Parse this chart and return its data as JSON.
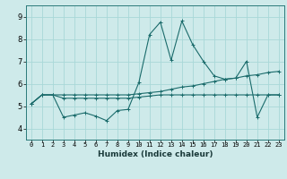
{
  "xlabel": "Humidex (Indice chaleur)",
  "background_color": "#ceeaea",
  "line_color": "#1a6b6b",
  "grid_color": "#a8d8d8",
  "x_labels": [
    "0",
    "1",
    "2",
    "3",
    "4",
    "5",
    "6",
    "7",
    "8",
    "9",
    "10",
    "11",
    "12",
    "13",
    "14",
    "15",
    "16",
    "17",
    "18",
    "19",
    "20",
    "21",
    "22",
    "23"
  ],
  "ylim": [
    3.5,
    9.5
  ],
  "yticks": [
    4,
    5,
    6,
    7,
    8,
    9
  ],
  "series1": [
    5.1,
    5.5,
    5.5,
    4.5,
    4.6,
    4.7,
    4.55,
    4.35,
    4.8,
    4.85,
    6.05,
    8.2,
    8.75,
    7.05,
    8.8,
    7.75,
    7.0,
    6.35,
    6.2,
    6.25,
    7.0,
    4.5,
    5.5,
    5.5
  ],
  "series2": [
    5.1,
    5.5,
    5.5,
    5.5,
    5.5,
    5.5,
    5.5,
    5.5,
    5.5,
    5.5,
    5.55,
    5.6,
    5.65,
    5.75,
    5.85,
    5.9,
    6.0,
    6.1,
    6.2,
    6.25,
    6.35,
    6.4,
    6.5,
    6.55
  ],
  "series3": [
    5.1,
    5.5,
    5.5,
    5.35,
    5.35,
    5.35,
    5.35,
    5.35,
    5.35,
    5.35,
    5.4,
    5.45,
    5.5,
    5.5,
    5.5,
    5.5,
    5.5,
    5.5,
    5.5,
    5.5,
    5.5,
    5.5,
    5.5,
    5.5
  ]
}
